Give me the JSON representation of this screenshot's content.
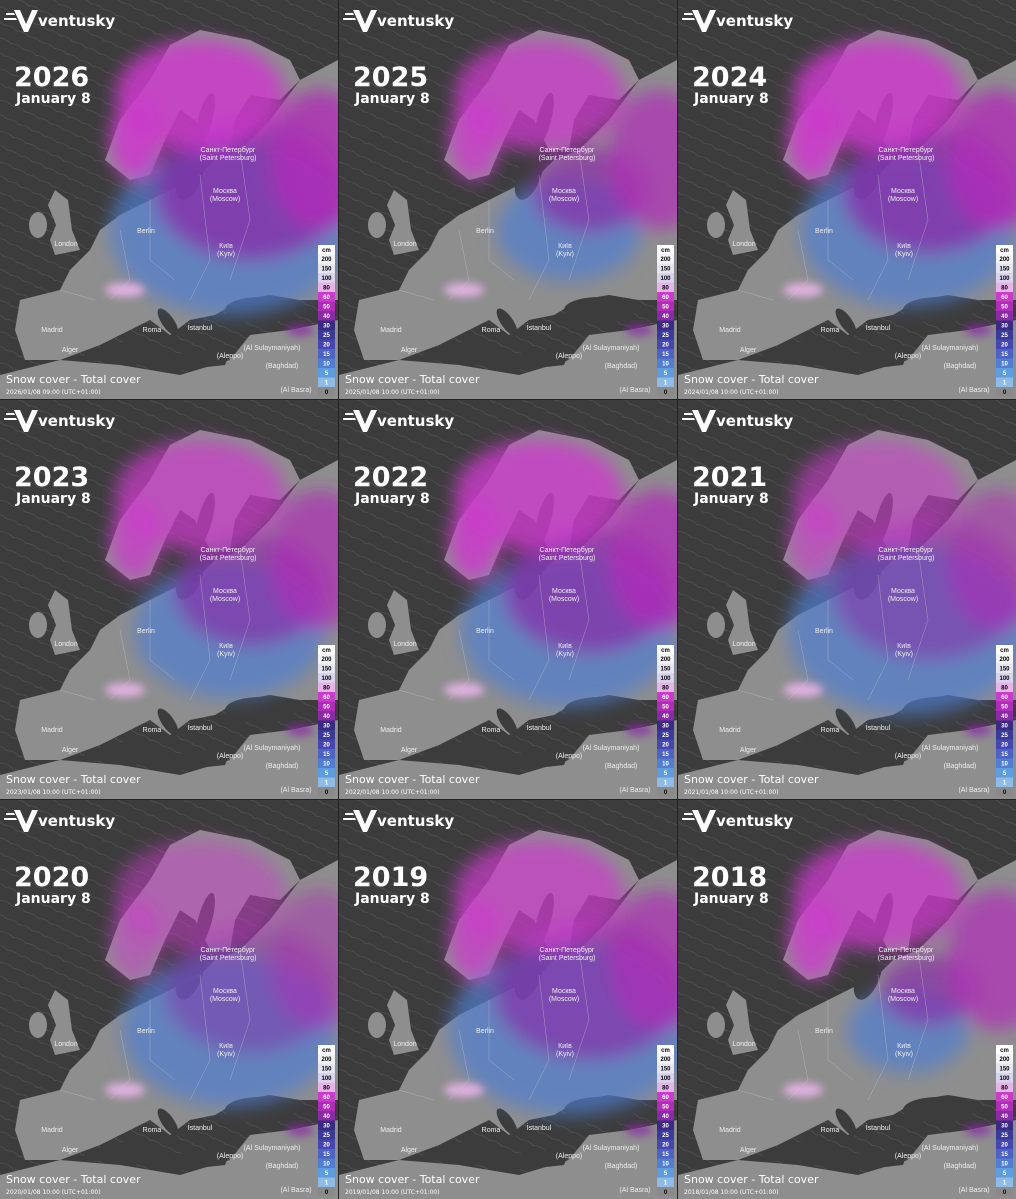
{
  "brand": "ventusky",
  "panels": [
    {
      "year": "2026",
      "date": "January 8",
      "layer": "Snow cover - Total cover",
      "timestamp": "2026/01/08 09:00 (UTC+01:00)"
    },
    {
      "year": "2025",
      "date": "January 8",
      "layer": "Snow cover - Total cover",
      "timestamp": "2025/01/08 10:00 (UTC+01:00)"
    },
    {
      "year": "2024",
      "date": "January 8",
      "layer": "Snow cover - Total cover",
      "timestamp": "2024/01/08 10:00 (UTC+01:00)"
    },
    {
      "year": "2023",
      "date": "January 8",
      "layer": "Snow cover - Total cover",
      "timestamp": "2023/01/08 10:00 (UTC+01:00)"
    },
    {
      "year": "2022",
      "date": "January 8",
      "layer": "Snow cover - Total cover",
      "timestamp": "2022/01/08 10:00 (UTC+01:00)"
    },
    {
      "year": "2021",
      "date": "January 8",
      "layer": "Snow cover - Total cover",
      "timestamp": "2021/01/08 10:00 (UTC+01:00)"
    },
    {
      "year": "2020",
      "date": "January 8",
      "layer": "Snow cover - Total cover",
      "timestamp": "2020/01/08 10:00 (UTC+01:00)"
    },
    {
      "year": "2019",
      "date": "January 8",
      "layer": "Snow cover - Total cover",
      "timestamp": "2019/01/08 10:00 (UTC+01:00)"
    },
    {
      "year": "2018",
      "date": "January 8",
      "layer": "Snow cover - Total cover",
      "timestamp": "2018/01/08 10:00 (UTC+01:00)"
    }
  ],
  "cities": [
    "Санкт-Петербург",
    "(Saint Petersburg)",
    "Москва",
    "(Moscow)",
    "London",
    "Berlin",
    "Київ",
    "(Kyiv)",
    "Madrid",
    "Roma",
    "İstanbul",
    "Alger",
    "(Aleppo)",
    "(Al Sulaymaniyah)",
    "(Baghdad)",
    "(Al Basra)"
  ],
  "legend": {
    "unit": "cm",
    "levels": [
      200,
      150,
      100,
      80,
      60,
      50,
      40,
      30,
      25,
      20,
      15,
      10,
      5,
      1,
      0
    ],
    "colors": [
      "#f4f4f8",
      "#e6e6f2",
      "#d8d4ee",
      "#e8b4e8",
      "#cc3acc",
      "#b02cb8",
      "#8a2aa8",
      "#3a2a80",
      "#3a3a9a",
      "#4646b0",
      "#4c62c4",
      "#4f7ed2",
      "#5c9ce0",
      "#8ebce6",
      "#8a8a8a"
    ]
  }
}
